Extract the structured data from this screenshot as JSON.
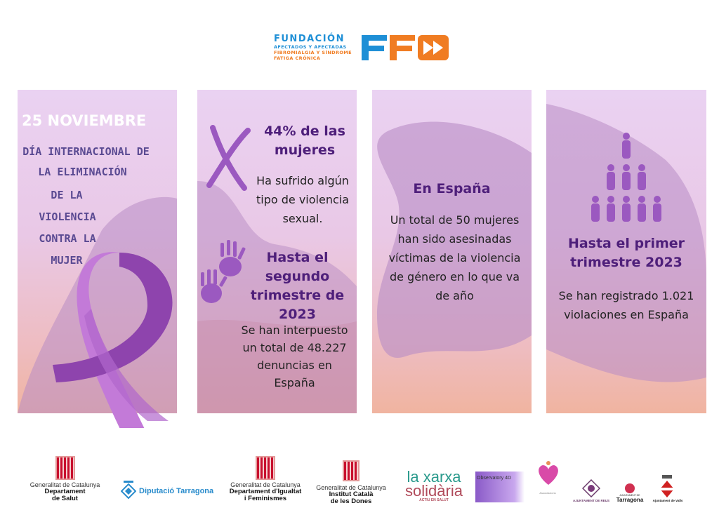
{
  "header": {
    "org_line1": "FUNDACIÓN",
    "org_line2": "AFECTADOS Y AFECTADAS",
    "org_line3": "FIBROMIALGIA Y SÍNDROME",
    "org_line4": "FATIGA CRÓNICA",
    "logo_letters": "FF",
    "colors": {
      "blue": "#1e8fd6",
      "orange": "#f07c22"
    }
  },
  "panels": [
    {
      "date": "25 NOVIEMBRE",
      "lines": [
        "DÍA INTERNACIONAL DE",
        "LA ELIMINACIÓN",
        "DE LA",
        "VIOLENCIA",
        "CONTRA LA",
        "MUJER"
      ],
      "icon": "ribbon-icon"
    },
    {
      "stat1_title": "44% de las mujeres",
      "stat1_text": "Ha sufrido algún tipo de violencia sexual.",
      "stat2_title": "Hasta el segundo trimestre de 2023",
      "stat2_text": "Se han interpuesto un total de 48.227 denuncias en España",
      "icons": [
        "x-mark-icon",
        "handprint-icon"
      ]
    },
    {
      "title": "En España",
      "text": "Un total de 50 mujeres han sido asesinadas víctimas de la violencia de género en lo que va de año"
    },
    {
      "title": "Hasta el primer trimestre 2023",
      "text": "Se han registrado 1.021 violaciones en España",
      "icon": "people-pyramid-icon"
    }
  ],
  "sponsors": [
    {
      "line1": "Generalitat de Catalunya",
      "line2": "Departament",
      "line3": "de Salut"
    },
    {
      "name": "Diputació Tarragona"
    },
    {
      "line1": "Generalitat de Catalunya",
      "line2": "Departament d'Igualtat",
      "line3": "i Feminismes"
    },
    {
      "line1": "Generalitat de Catalunya",
      "line2": "Institut Català",
      "line3": "de les Dones"
    },
    {
      "line1": "la xarxa",
      "line2": "solidària",
      "line3": "ACTIU EN SALUT"
    },
    {
      "line1": "Observatory 4D"
    },
    {
      "name": "Associacions"
    },
    {
      "name": "AJUNTAMENT DE REUS"
    },
    {
      "line1": "AJUNTAMENT DE",
      "line2": "Tarragona"
    },
    {
      "name": "Ajuntament de Valls"
    }
  ],
  "colors": {
    "heading": "#4e1f7a",
    "accent_purple": "#9b59c0",
    "hand_text": "#5a4a92"
  }
}
